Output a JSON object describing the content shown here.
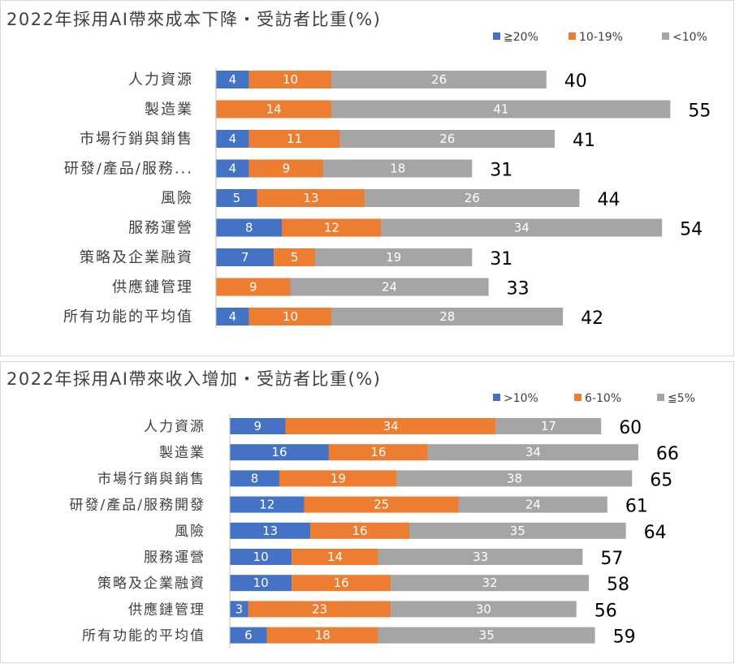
{
  "colors": {
    "c1": "#4472C4",
    "c2": "#ED7D31",
    "c3": "#A5A5A5"
  },
  "chart_data": [
    {
      "type": "bar",
      "orientation": "horizontal-stacked",
      "title": "2022年採用AI帶來成本下降・受訪者比重(%)",
      "legend": [
        "≧20%",
        "10-19%",
        "<10%"
      ],
      "legend_position": "top-right",
      "categories": [
        "人力資源",
        "製造業",
        "市場行銷與銷售",
        "研發/產品/服務...",
        "風險",
        "服務運營",
        "策略及企業融資",
        "供應鏈管理",
        "所有功能的平均值"
      ],
      "series": [
        {
          "name": "≧20%",
          "values": [
            4,
            0,
            4,
            4,
            5,
            8,
            7,
            0,
            4
          ]
        },
        {
          "name": "10-19%",
          "values": [
            10,
            14,
            11,
            9,
            13,
            12,
            5,
            9,
            10
          ]
        },
        {
          "name": "<10%",
          "values": [
            26,
            41,
            26,
            18,
            26,
            34,
            19,
            24,
            28
          ]
        }
      ],
      "totals": [
        40,
        55,
        41,
        31,
        44,
        54,
        31,
        33,
        42
      ]
    },
    {
      "type": "bar",
      "orientation": "horizontal-stacked",
      "title": "2022年採用AI帶來收入增加・受訪者比重(%)",
      "legend": [
        ">10%",
        "6-10%",
        "≦5%"
      ],
      "legend_position": "top-right",
      "categories": [
        "人力資源",
        "製造業",
        "市場行銷與銷售",
        "研發/產品/服務開發",
        "風險",
        "服務運營",
        "策略及企業融資",
        "供應鏈管理",
        "所有功能的平均值"
      ],
      "series": [
        {
          "name": ">10%",
          "values": [
            9,
            16,
            8,
            12,
            13,
            10,
            10,
            3,
            6
          ]
        },
        {
          "name": "6-10%",
          "values": [
            34,
            16,
            19,
            25,
            16,
            14,
            16,
            23,
            18
          ]
        },
        {
          "name": "≦5%",
          "values": [
            17,
            34,
            38,
            24,
            35,
            33,
            32,
            30,
            35
          ]
        }
      ],
      "totals": [
        60,
        66,
        65,
        61,
        64,
        57,
        58,
        56,
        59
      ]
    }
  ]
}
